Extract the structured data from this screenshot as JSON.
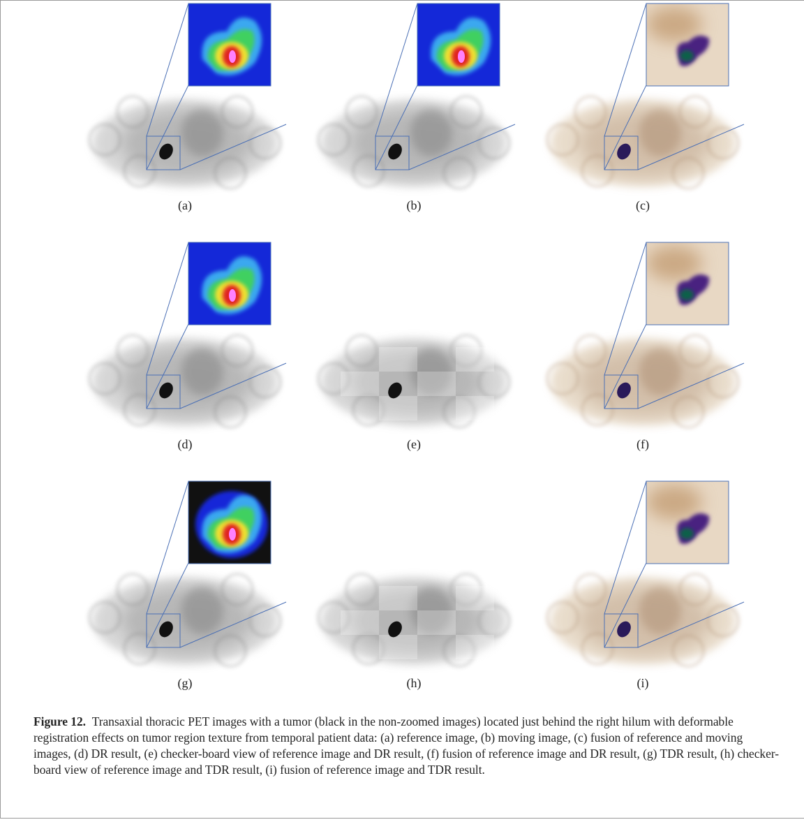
{
  "panels": [
    "(a)",
    "(b)",
    "(c)",
    "(d)",
    "(e)",
    "(f)",
    "(g)",
    "(h)",
    "(i)"
  ],
  "caption": {
    "label": "Figure 12.",
    "text": "Transaxial thoracic PET images with a tumor (black in the non-zoomed images) located just behind the right hilum with deformable registration effects on tumor region texture from temporal patient data: (a) reference image, (b) moving image, (c) fusion of reference and moving images, (d) DR result, (e) checker-board view of reference image and DR result, (f) fusion of reference image and DR result, (g) TDR result, (h) checker-board view of reference image and TDR result, (i) fusion of reference image and TDR result."
  }
}
